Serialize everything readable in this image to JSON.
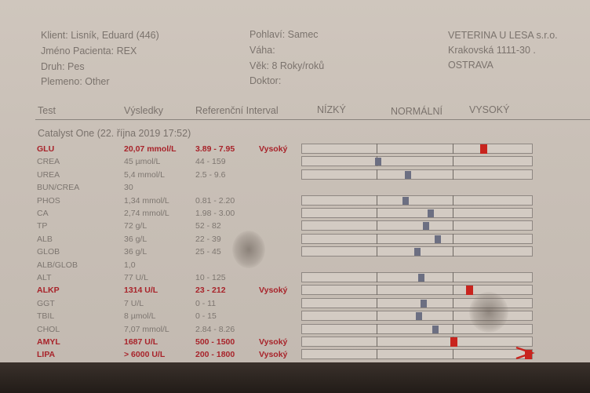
{
  "header": {
    "client": "Klient: Lisník, Eduard (446)",
    "patient": "Jméno Pacienta: REX",
    "species": "Druh: Pes",
    "breed": "Plemeno: Other",
    "sex": "Pohlaví: Samec",
    "weight": "Váha:",
    "age": "Věk: 8 Roky/roků",
    "doctor": "Doktor:",
    "clinic_name": "VETERINA U LESA s.r.o.",
    "clinic_street": "Krakovská 1111-30 .",
    "clinic_city": "OSTRAVA"
  },
  "columns": {
    "test": "Test",
    "results": "Výsledky",
    "reference": "Referenční Interval",
    "low": "NÍZKÝ",
    "normal": "NORMÁLNÍ",
    "high": "VYSOKÝ"
  },
  "run_label": "Catalyst One (22. října 2019 17:52)",
  "flag_high_label": "Vysoký",
  "rows": [
    {
      "test": "GLU",
      "result": "20,07 mmol/L",
      "ref": "3.89 - 7.95",
      "flag": "Vysoký",
      "gauge": true,
      "marker": 0.79,
      "high": true
    },
    {
      "test": "CREA",
      "result": "45 µmol/L",
      "ref": "44 - 159",
      "flag": "",
      "gauge": true,
      "marker": 0.33,
      "high": false
    },
    {
      "test": "UREA",
      "result": "5,4 mmol/L",
      "ref": "2.5 - 9.6",
      "flag": "",
      "gauge": true,
      "marker": 0.46,
      "high": false
    },
    {
      "test": "BUN/CREA",
      "result": "30",
      "ref": "",
      "flag": "",
      "gauge": false,
      "marker": null,
      "high": false
    },
    {
      "test": "PHOS",
      "result": "1,34 mmol/L",
      "ref": "0.81 - 2.20",
      "flag": "",
      "gauge": true,
      "marker": 0.45,
      "high": false
    },
    {
      "test": "CA",
      "result": "2,74 mmol/L",
      "ref": "1.98 - 3.00",
      "flag": "",
      "gauge": true,
      "marker": 0.56,
      "high": false
    },
    {
      "test": "TP",
      "result": "72 g/L",
      "ref": "52 - 82",
      "flag": "",
      "gauge": true,
      "marker": 0.54,
      "high": false
    },
    {
      "test": "ALB",
      "result": "36 g/L",
      "ref": "22 - 39",
      "flag": "",
      "gauge": true,
      "marker": 0.59,
      "high": false
    },
    {
      "test": "GLOB",
      "result": "36 g/L",
      "ref": "25 - 45",
      "flag": "",
      "gauge": true,
      "marker": 0.5,
      "high": false
    },
    {
      "test": "ALB/GLOB",
      "result": "1,0",
      "ref": "",
      "flag": "",
      "gauge": false,
      "marker": null,
      "high": false
    },
    {
      "test": "ALT",
      "result": "77 U/L",
      "ref": "10 - 125",
      "flag": "",
      "gauge": true,
      "marker": 0.52,
      "high": false
    },
    {
      "test": "ALKP",
      "result": "1314 U/L",
      "ref": "23 - 212",
      "flag": "Vysoký",
      "gauge": true,
      "marker": 0.73,
      "high": true
    },
    {
      "test": "GGT",
      "result": "7 U/L",
      "ref": "0 - 11",
      "flag": "",
      "gauge": true,
      "marker": 0.53,
      "high": false
    },
    {
      "test": "TBIL",
      "result": "8 µmol/L",
      "ref": "0 - 15",
      "flag": "",
      "gauge": true,
      "marker": 0.51,
      "high": false
    },
    {
      "test": "CHOL",
      "result": "7,07 mmol/L",
      "ref": "2.84 - 8.26",
      "flag": "",
      "gauge": true,
      "marker": 0.58,
      "high": false
    },
    {
      "test": "AMYL",
      "result": "1687 U/L",
      "ref": "500 - 1500",
      "flag": "Vysoký",
      "gauge": true,
      "marker": 0.66,
      "high": true
    },
    {
      "test": "LIPA",
      "result": "> 6000 U/L",
      "ref": "200 - 1800",
      "flag": "Vysoký",
      "gauge": true,
      "marker": 1.0,
      "high": true
    }
  ],
  "colors": {
    "high_text": "#a8232a",
    "high_marker": "#c8241e",
    "normal_marker": "#6c6f82"
  }
}
